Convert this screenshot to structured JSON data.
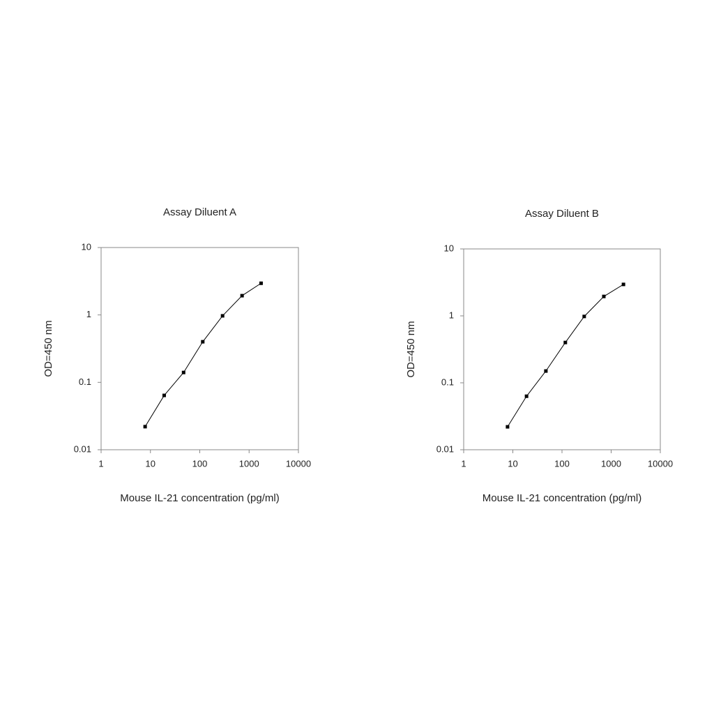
{
  "chart_data": [
    {
      "type": "line",
      "title": "Assay Diluent A",
      "x_label": "Mouse IL-21 concentration (pg/ml)",
      "y_label": "OD=450 nm",
      "x": [
        7.8,
        19,
        47,
        115,
        290,
        720,
        1750
      ],
      "values": [
        0.022,
        0.064,
        0.14,
        0.4,
        0.97,
        1.93,
        2.95
      ],
      "color": "#000000",
      "xlim": [
        1,
        10000
      ],
      "xticks": [
        1,
        10,
        100,
        1000,
        10000
      ],
      "ylim": [
        0.01,
        10
      ],
      "yticks": [
        0.01,
        0.1,
        1,
        10
      ],
      "xlog": true,
      "ylog": true,
      "grid": false
    },
    {
      "type": "line",
      "title": "Assay Diluent B",
      "x_label": "Mouse IL-21 concentration (pg/ml)",
      "y_label": "OD=450 nm",
      "x": [
        7.8,
        19,
        47,
        117,
        283,
        710,
        1780
      ],
      "values": [
        0.022,
        0.063,
        0.15,
        0.4,
        0.98,
        1.95,
        2.95
      ],
      "color": "#000000",
      "xlim": [
        1,
        10000
      ],
      "xticks": [
        1,
        10,
        100,
        1000,
        10000
      ],
      "ylim": [
        0.01,
        10
      ],
      "yticks": [
        0.01,
        0.1,
        1,
        10
      ],
      "xlog": true,
      "ylog": true,
      "grid": false
    }
  ]
}
